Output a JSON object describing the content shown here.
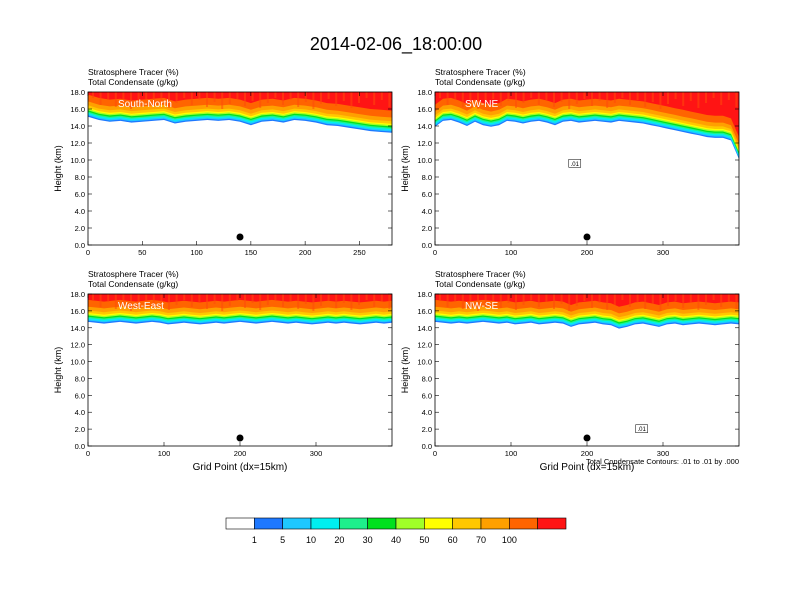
{
  "figure": {
    "title": "2014-02-06_18:00:00",
    "footnote": "Total Condensate Contours: .01 to .01 by .000"
  },
  "colorbar": {
    "colors": [
      "#ffffff",
      "#1e78ff",
      "#1ec8ff",
      "#00f0f0",
      "#1ef08c",
      "#00e11e",
      "#a0ff28",
      "#ffff00",
      "#ffc800",
      "#ffa000",
      "#ff6400",
      "#ff1414"
    ],
    "labels": [
      "1",
      "5",
      "10",
      "20",
      "30",
      "40",
      "50",
      "60",
      "70",
      "100"
    ]
  },
  "chart_data": [
    {
      "type": "heatmap",
      "label": "South-North",
      "title_lines": [
        "Stratosphere Tracer   (%)",
        "Total Condensate   (g/kg)"
      ],
      "ylabel": "Height (km)",
      "xlabel": "",
      "xlim": [
        0,
        280
      ],
      "ylim": [
        0,
        18
      ],
      "x_ticks": [
        0,
        50,
        100,
        150,
        200,
        250
      ],
      "y_ticks": [
        "0.0",
        "2.0",
        "4.0",
        "6.0",
        "8.0",
        "10.0",
        "12.0",
        "14.0",
        "16.0",
        "18.0"
      ],
      "tropopause_km": [
        16.0,
        15.6,
        15.4,
        15.5,
        15.3,
        15.4,
        15.5,
        15.6,
        15.2,
        15.4,
        15.5,
        15.6,
        15.5,
        15.6,
        15.4,
        15.0,
        15.4,
        15.5,
        15.3,
        15.6,
        15.5,
        15.3,
        15.0,
        14.9,
        14.7,
        14.5,
        14.3,
        14.2,
        14.1
      ],
      "marker_x": 140,
      "contour_label": ""
    },
    {
      "type": "heatmap",
      "label": "SW-NE",
      "title_lines": [
        "Stratosphere Tracer   (%)",
        "Total Condensate   (g/kg)"
      ],
      "ylabel": "Height (km)",
      "xlabel": "",
      "xlim": [
        0,
        400
      ],
      "ylim": [
        0,
        18
      ],
      "x_ticks": [
        0,
        100,
        200,
        300
      ],
      "y_ticks": [
        "0.0",
        "2.0",
        "4.0",
        "6.0",
        "8.0",
        "10.0",
        "12.0",
        "14.0",
        "16.0",
        "18.0"
      ],
      "tropopause_km": [
        14.8,
        15.5,
        15.6,
        15.3,
        14.9,
        15.4,
        15.0,
        14.8,
        15.0,
        15.5,
        15.4,
        15.2,
        15.4,
        15.5,
        15.3,
        15.0,
        15.4,
        15.5,
        15.3,
        15.4,
        15.5,
        15.4,
        15.3,
        15.5,
        15.4,
        15.3,
        15.2,
        15.0,
        14.8,
        14.6,
        14.4,
        14.2,
        14.0,
        13.8,
        13.6,
        13.5,
        13.5,
        13.2,
        11.0
      ],
      "marker_x": 200,
      "contour_label": ".01"
    },
    {
      "type": "heatmap",
      "label": "West-East",
      "title_lines": [
        "Stratosphere Tracer   (%)",
        "Total Condensate   (g/kg)"
      ],
      "ylabel": "Height (km)",
      "xlabel": "Grid Point (dx=15km)",
      "xlim": [
        0,
        400
      ],
      "ylim": [
        0,
        18
      ],
      "x_ticks": [
        0,
        100,
        200,
        300
      ],
      "y_ticks": [
        "0.0",
        "2.0",
        "4.0",
        "6.0",
        "8.0",
        "10.0",
        "12.0",
        "14.0",
        "16.0",
        "18.0"
      ],
      "tropopause_km": [
        15.6,
        15.5,
        15.4,
        15.5,
        15.6,
        15.5,
        15.4,
        15.5,
        15.6,
        15.5,
        15.3,
        15.4,
        15.5,
        15.4,
        15.3,
        15.4,
        15.5,
        15.4,
        15.5,
        15.6,
        15.5,
        15.4,
        15.5,
        15.6,
        15.5,
        15.4,
        15.5,
        15.4,
        15.3,
        15.4,
        15.5,
        15.4,
        15.5,
        15.4,
        15.3,
        15.4,
        15.5,
        15.4,
        15.5
      ],
      "marker_x": 200,
      "contour_label": ""
    },
    {
      "type": "heatmap",
      "label": "NW-SE",
      "title_lines": [
        "Stratosphere Tracer   (%)",
        "Total Condensate   (g/kg)"
      ],
      "ylabel": "Height (km)",
      "xlabel": "Grid Point (dx=15km)",
      "xlim": [
        0,
        400
      ],
      "ylim": [
        0,
        18
      ],
      "x_ticks": [
        0,
        100,
        200,
        300
      ],
      "y_ticks": [
        "0.0",
        "2.0",
        "4.0",
        "6.0",
        "8.0",
        "10.0",
        "12.0",
        "14.0",
        "16.0",
        "18.0"
      ],
      "tropopause_km": [
        15.6,
        15.5,
        15.4,
        15.5,
        15.4,
        15.5,
        15.6,
        15.5,
        15.4,
        15.5,
        15.3,
        15.4,
        15.5,
        15.3,
        15.4,
        15.5,
        15.4,
        15.0,
        15.3,
        15.4,
        15.5,
        15.3,
        15.2,
        14.8,
        15.0,
        15.3,
        15.4,
        15.2,
        15.0,
        15.3,
        15.4,
        15.2,
        15.3,
        15.4,
        15.3,
        15.2,
        15.3,
        15.4,
        15.3
      ],
      "marker_x": 200,
      "contour_label": ".01"
    }
  ]
}
